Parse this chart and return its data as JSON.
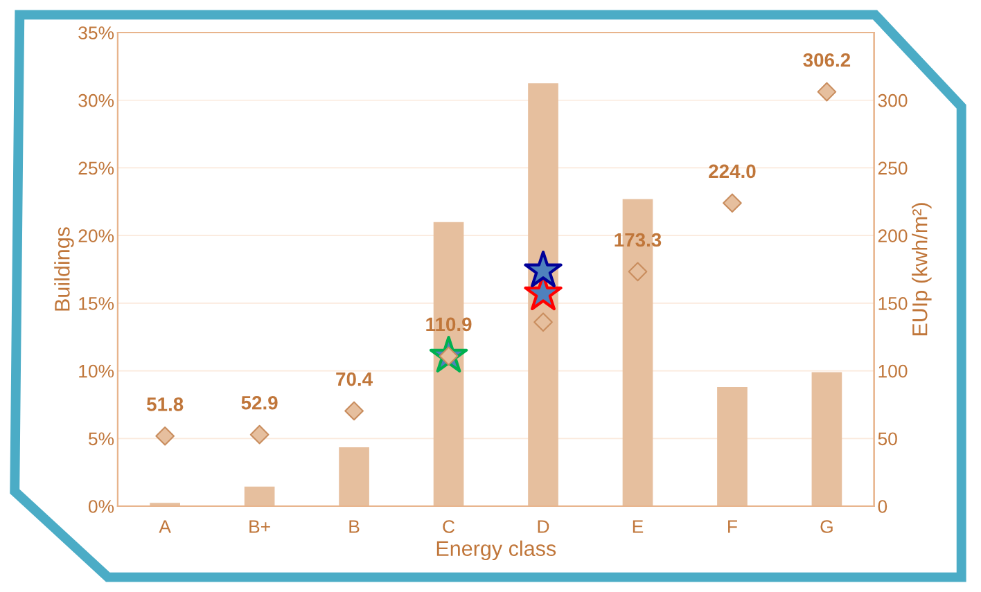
{
  "chart_data": {
    "type": "bar",
    "xlabel": "Energy class",
    "ylabel": "Buildings",
    "y2label": "EUIp (kwh/m²)",
    "categories": [
      "A",
      "B+",
      "B",
      "C",
      "D",
      "E",
      "F",
      "G"
    ],
    "series": [
      {
        "color": "#e6bf9e",
        "values": [
          0.25,
          1.45,
          4.35,
          21.0,
          31.25,
          22.7,
          8.8,
          9.9
        ]
      },
      {
        "type": "scatter",
        "axis": "y2",
        "marker": "diamond",
        "color": "#e6bf9e",
        "values": [
          51.8,
          52.9,
          70.4,
          110.9,
          136,
          173.3,
          224.0,
          306.2
        ],
        "value_labels": [
          "51.8",
          "52.9",
          "70.4",
          "110.9",
          null,
          "173.3",
          "224.0",
          "306.2"
        ]
      },
      {
        "type": "scatter",
        "axis": "y2",
        "marker": "star",
        "color": "#00b050",
        "x": [
          "C"
        ],
        "values": [
          111
        ]
      },
      {
        "type": "scatter",
        "axis": "y2",
        "marker": "star",
        "color": "#ff0000",
        "x": [
          "D"
        ],
        "values": [
          157
        ]
      },
      {
        "type": "scatter",
        "axis": "y2",
        "marker": "star",
        "color": "#000099",
        "x": [
          "D"
        ],
        "values": [
          174
        ]
      }
    ],
    "ylim": [
      0,
      35
    ],
    "yticks": [
      {
        "value": 0,
        "label": "0%"
      },
      {
        "value": 5,
        "label": "5%"
      },
      {
        "value": 10,
        "label": "10%"
      },
      {
        "value": 15,
        "label": "15%"
      },
      {
        "value": 20,
        "label": "20%"
      },
      {
        "value": 25,
        "label": "25%"
      },
      {
        "value": 30,
        "label": "30%"
      },
      {
        "value": 35,
        "label": "35%"
      }
    ],
    "y2lim": [
      0,
      350
    ],
    "y2ticks": [
      0,
      50,
      100,
      150,
      200,
      250,
      300
    ],
    "grid": "y"
  }
}
